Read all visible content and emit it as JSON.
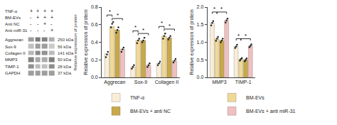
{
  "chart_data": [
    {
      "type": "blot",
      "conditions": [
        "TNF-α",
        "BM-EVs",
        "Anti NC",
        "Anti miR-31"
      ],
      "signs": [
        [
          "+",
          "+",
          "+",
          "+"
        ],
        [
          "-",
          "+",
          "+",
          "+"
        ],
        [
          "-",
          "-",
          "+",
          "-"
        ],
        [
          "-",
          "-",
          "-",
          "+"
        ]
      ],
      "categories": [
        "Aggrecan",
        "Sox-9",
        "Collagen II",
        "MMP3",
        "TIMP-1",
        "GAPDH"
      ],
      "kda_labels": [
        "250 kDa",
        "56 kDa",
        "141 kDa",
        "50 kDa",
        "28 kDa",
        "37 kDa"
      ],
      "ylabel": "Relative expression of protein",
      "values": [
        [
          0.55,
          0.75,
          0.7,
          0.45
        ],
        [
          0.35,
          0.55,
          0.55,
          0.3
        ],
        [
          0.4,
          0.65,
          0.62,
          0.38
        ],
        [
          0.7,
          0.5,
          0.48,
          0.72
        ],
        [
          0.62,
          0.38,
          0.36,
          0.64
        ],
        [
          0.55,
          0.55,
          0.55,
          0.55
        ]
      ]
    },
    {
      "type": "bar",
      "categories": [
        "Aggrecan",
        "Sox-9",
        "Collagen II"
      ],
      "ylabel": "Relative expression of protein",
      "ylim": [
        0.0,
        0.8
      ],
      "yticks": [
        {
          "value": 0.0,
          "label": "0.0"
        },
        0.2,
        0.4,
        0.6,
        0.8
      ],
      "grid": false,
      "legend": "bottom",
      "series": [
        {
          "name": "TNF-α",
          "color": "#f9edd8",
          "values": [
            0.27,
            0.12,
            0.16
          ],
          "dots": [
            [
              0.23,
              0.26,
              0.29
            ],
            [
              0.1,
              0.12,
              0.14
            ],
            [
              0.14,
              0.16,
              0.18
            ]
          ]
        },
        {
          "name": "BM-EVs",
          "color": "#f0d898",
          "values": [
            0.58,
            0.42,
            0.47
          ],
          "dots": [
            [
              0.57,
              0.61,
              0.63
            ],
            [
              0.39,
              0.42,
              0.44
            ],
            [
              0.44,
              0.47,
              0.5
            ]
          ]
        },
        {
          "name": "BM-EVs + anti NC",
          "color": "#c8a84b",
          "values": [
            0.54,
            0.42,
            0.45
          ],
          "dots": [
            [
              0.51,
              0.54,
              0.57
            ],
            [
              0.4,
              0.42,
              0.45
            ],
            [
              0.43,
              0.45,
              0.47
            ]
          ]
        },
        {
          "name": "BM-EVs + anti miR-31",
          "color": "#f0c0c0",
          "values": [
            0.32,
            0.14,
            0.19
          ],
          "dots": [
            [
              0.29,
              0.32,
              0.34
            ],
            [
              0.12,
              0.14,
              0.16
            ],
            [
              0.17,
              0.19,
              0.21
            ]
          ]
        }
      ],
      "brackets": [
        {
          "group": 0,
          "from": 0,
          "to": 1,
          "y": 0.71,
          "label": "*"
        },
        {
          "group": 0,
          "from": 1,
          "to": 3,
          "y": 0.67,
          "label": "*"
        },
        {
          "group": 1,
          "from": 0,
          "to": 1,
          "y": 0.53,
          "label": "*"
        },
        {
          "group": 1,
          "from": 1,
          "to": 3,
          "y": 0.5,
          "label": "*"
        },
        {
          "group": 2,
          "from": 0,
          "to": 1,
          "y": 0.58,
          "label": "*"
        },
        {
          "group": 2,
          "from": 1,
          "to": 3,
          "y": 0.55,
          "label": "*"
        }
      ]
    },
    {
      "type": "bar",
      "categories": [
        "MMP3",
        "TIMP-1"
      ],
      "ylabel": "Relative expression of protein",
      "ylim": [
        0.0,
        2.0
      ],
      "yticks": [
        {
          "value": 0.0,
          "label": "0.0"
        },
        0.5,
        {
          "value": 1.0,
          "label": "1.0"
        },
        1.5,
        {
          "value": 2.0,
          "label": "2.0"
        }
      ],
      "grid": false,
      "series": [
        {
          "color": "#f9edd8",
          "values": [
            1.55,
            0.88
          ],
          "dots": [
            [
              1.48,
              1.55,
              1.6
            ],
            [
              0.84,
              0.88,
              0.93
            ]
          ]
        },
        {
          "color": "#f0d898",
          "values": [
            1.1,
            0.52
          ],
          "dots": [
            [
              1.04,
              1.1,
              1.15
            ],
            [
              0.48,
              0.52,
              0.55
            ]
          ]
        },
        {
          "color": "#c8a84b",
          "values": [
            1.05,
            0.5
          ],
          "dots": [
            [
              1.0,
              1.05,
              1.1
            ],
            [
              0.46,
              0.5,
              0.54
            ]
          ]
        },
        {
          "color": "#f0c0c0",
          "values": [
            1.62,
            0.9
          ],
          "dots": [
            [
              1.56,
              1.62,
              1.67
            ],
            [
              0.86,
              0.9,
              0.94
            ]
          ]
        }
      ],
      "brackets": [
        {
          "group": 0,
          "from": 0,
          "to": 1,
          "y": 1.86,
          "label": "*"
        },
        {
          "group": 0,
          "from": 1,
          "to": 3,
          "y": 1.86,
          "label": "*"
        },
        {
          "group": 1,
          "from": 0,
          "to": 1,
          "y": 1.1,
          "label": "*"
        },
        {
          "group": 1,
          "from": 1,
          "to": 3,
          "y": 1.1,
          "label": "*"
        }
      ]
    }
  ]
}
